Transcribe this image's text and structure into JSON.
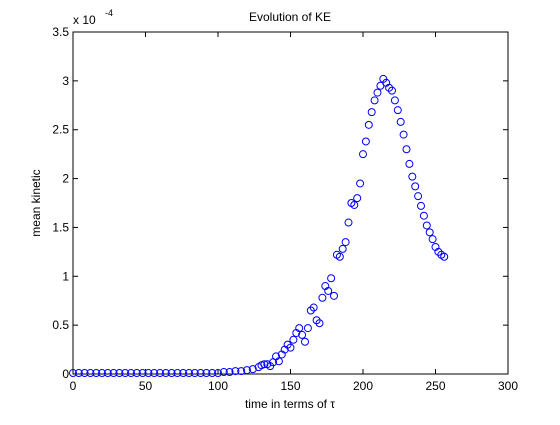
{
  "chart_data": {
    "type": "scatter",
    "title": "Evolution of KE",
    "x_label": "time in terms of τ",
    "y_label": "mean kinetic",
    "y_multiplier": "x 10",
    "y_exponent": "-4",
    "xlim": [
      0,
      300
    ],
    "xticks": [
      0,
      50,
      100,
      150,
      200,
      250,
      300
    ],
    "ylim": [
      0,
      3.5
    ],
    "yticks": [
      0,
      0.5,
      1,
      1.5,
      2,
      2.5,
      3,
      3.5
    ],
    "grid": false,
    "series": [
      {
        "color": "#0000ff",
        "x": [
          0,
          4,
          8,
          12,
          16,
          20,
          24,
          28,
          32,
          36,
          40,
          44,
          48,
          52,
          56,
          60,
          64,
          68,
          72,
          76,
          80,
          84,
          88,
          92,
          96,
          100,
          104,
          108,
          112,
          116,
          120,
          124,
          128,
          130,
          132,
          134,
          136,
          138,
          140,
          142,
          144,
          146,
          148,
          150,
          152,
          154,
          156,
          158,
          160,
          162,
          164,
          166,
          168,
          170,
          172,
          174,
          176,
          178,
          180,
          182,
          184,
          186,
          188,
          190,
          192,
          194,
          196,
          198,
          200,
          202,
          204,
          206,
          208,
          210,
          212,
          214,
          216,
          218,
          220,
          222,
          224,
          226,
          228,
          230,
          232,
          234,
          236,
          238,
          240,
          242,
          244,
          246,
          248,
          250,
          252,
          254,
          256
        ],
        "values": [
          0.01,
          0.01,
          0.01,
          0.01,
          0.01,
          0.01,
          0.01,
          0.01,
          0.01,
          0.01,
          0.01,
          0.01,
          0.01,
          0.01,
          0.01,
          0.01,
          0.01,
          0.01,
          0.01,
          0.01,
          0.01,
          0.01,
          0.01,
          0.01,
          0.01,
          0.01,
          0.02,
          0.02,
          0.03,
          0.03,
          0.04,
          0.05,
          0.07,
          0.09,
          0.1,
          0.1,
          0.08,
          0.12,
          0.18,
          0.13,
          0.2,
          0.25,
          0.3,
          0.27,
          0.35,
          0.42,
          0.47,
          0.4,
          0.33,
          0.47,
          0.65,
          0.68,
          0.55,
          0.52,
          0.78,
          0.9,
          0.85,
          0.98,
          0.8,
          1.22,
          1.2,
          1.28,
          1.35,
          1.55,
          1.75,
          1.73,
          1.8,
          1.95,
          2.25,
          2.38,
          2.55,
          2.68,
          2.8,
          2.88,
          2.95,
          3.02,
          2.98,
          2.93,
          2.9,
          2.8,
          2.7,
          2.58,
          2.45,
          2.3,
          2.15,
          2.02,
          1.92,
          1.82,
          1.72,
          1.62,
          1.52,
          1.45,
          1.38,
          1.3,
          1.25,
          1.22,
          1.2
        ]
      }
    ]
  }
}
